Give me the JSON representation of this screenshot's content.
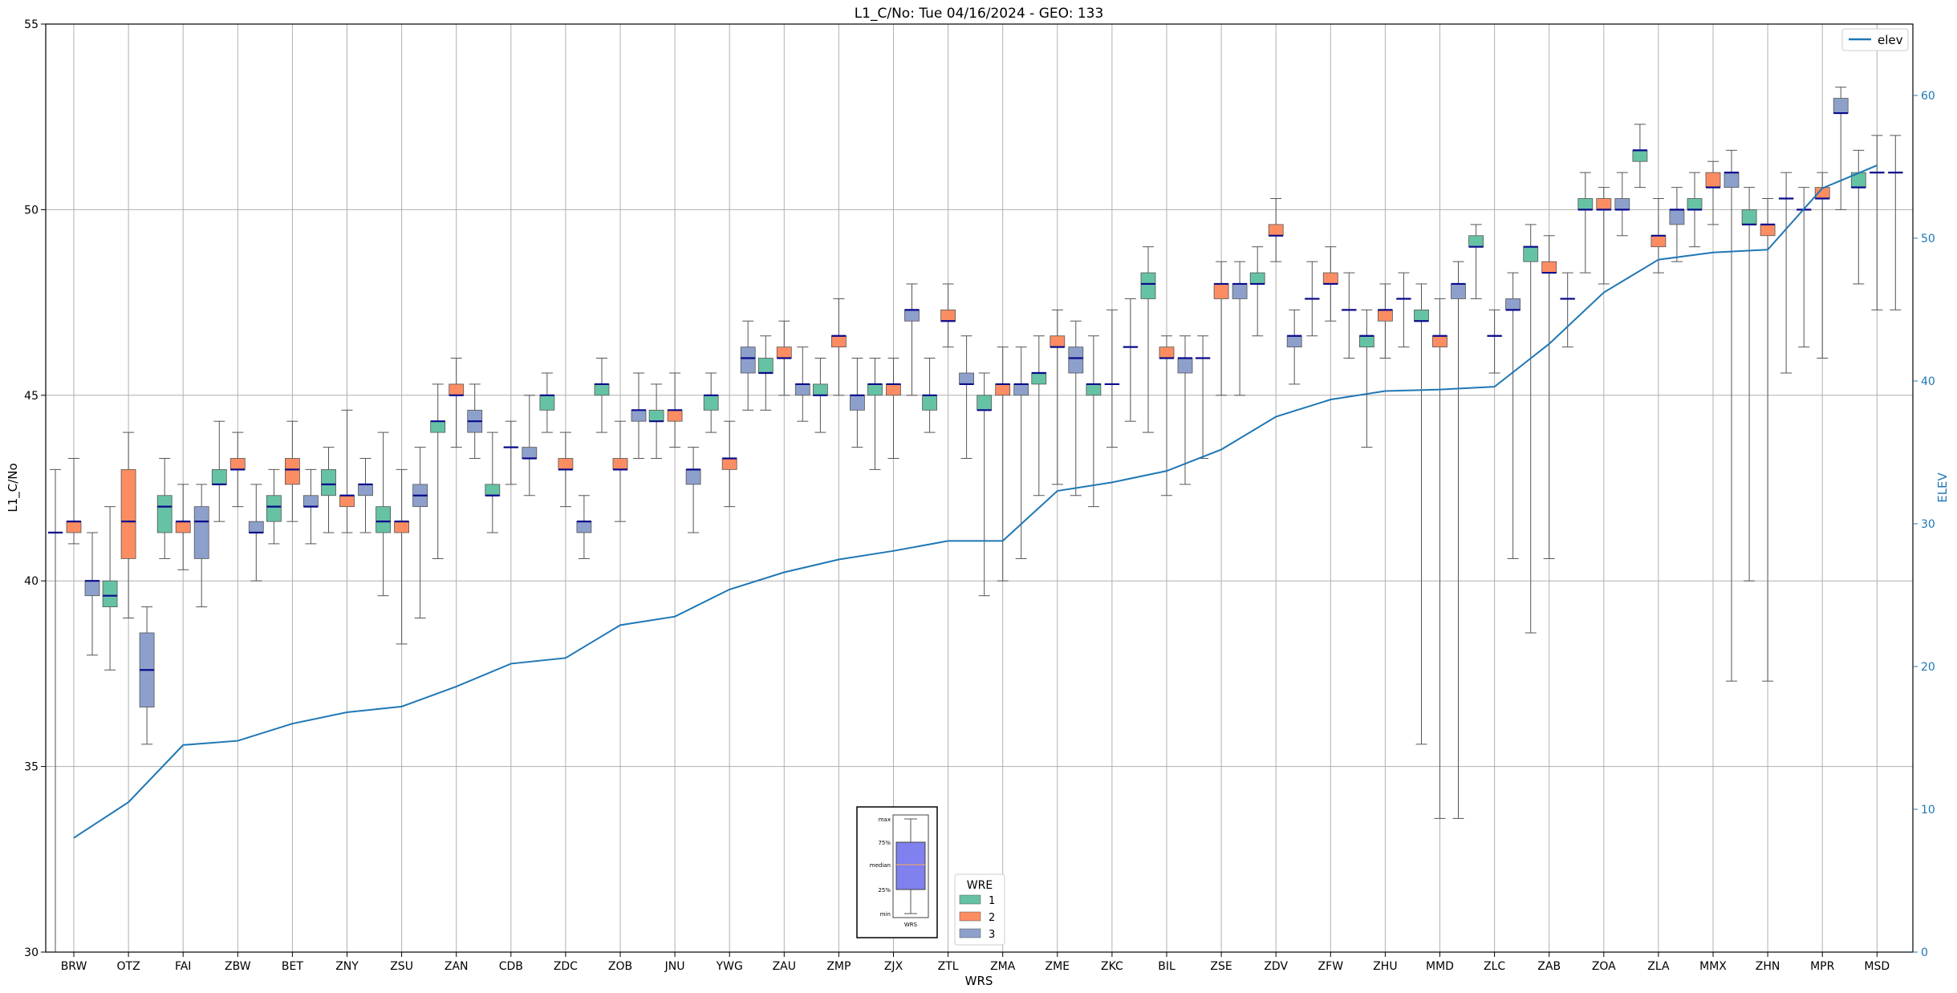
{
  "chart_data": {
    "type": "box",
    "title": "L1_C/No: Tue 04/16/2024 - GEO: 133",
    "xlabel": "WRS",
    "ylabel": "L1_C/No",
    "y2label": "ELEV",
    "ylim": [
      30,
      55
    ],
    "y2lim": [
      0,
      65
    ],
    "yticks": [
      30,
      35,
      40,
      45,
      50,
      55
    ],
    "y2ticks": [
      0,
      10,
      20,
      30,
      40,
      50,
      60
    ],
    "grid": true,
    "categories": [
      "BRW",
      "OTZ",
      "FAI",
      "ZBW",
      "BET",
      "ZNY",
      "ZSU",
      "ZAN",
      "CDB",
      "ZDC",
      "ZOB",
      "JNU",
      "YWG",
      "ZAU",
      "ZMP",
      "ZJX",
      "ZTL",
      "ZMA",
      "ZME",
      "ZKC",
      "BIL",
      "ZSE",
      "ZDV",
      "ZFW",
      "ZHU",
      "MMD",
      "ZLC",
      "ZAB",
      "ZOA",
      "ZLA",
      "MMX",
      "ZHN",
      "MPR",
      "MSD"
    ],
    "wre_colors": {
      "1": "#66c2a5",
      "2": "#fc8d62",
      "3": "#8da0cb"
    },
    "legend": {
      "title": "WRE",
      "entries": [
        "1",
        "2",
        "3"
      ],
      "placement": "bottom-center"
    },
    "line_legend": {
      "label": "elev",
      "placement": "top-right",
      "color": "#1f77b4"
    },
    "elev_series": {
      "name": "elev",
      "values": [
        8,
        10.5,
        14.5,
        14.8,
        16,
        16.8,
        17.2,
        18.6,
        20.2,
        20.6,
        22.9,
        23.5,
        25.4,
        26.6,
        27.5,
        28.1,
        28.8,
        28.8,
        32.3,
        32.9,
        33.7,
        35.2,
        37.5,
        38.7,
        39.3,
        39.4,
        39.6,
        42.6,
        46.2,
        48.5,
        49,
        49.2,
        53.5,
        55.1
      ]
    },
    "boxes": [
      {
        "wrs": "BRW",
        "wre": 1,
        "min": 30,
        "q1": 41.3,
        "median": 41.3,
        "q3": 41.3,
        "max": 43
      },
      {
        "wrs": "BRW",
        "wre": 2,
        "min": 41,
        "q1": 41.3,
        "median": 41.6,
        "q3": 41.6,
        "max": 43.3
      },
      {
        "wrs": "BRW",
        "wre": 3,
        "min": 38,
        "q1": 39.6,
        "median": 40,
        "q3": 40,
        "max": 41.3
      },
      {
        "wrs": "OTZ",
        "wre": 1,
        "min": 37.6,
        "q1": 39.3,
        "median": 39.6,
        "q3": 40,
        "max": 42
      },
      {
        "wrs": "OTZ",
        "wre": 2,
        "min": 39,
        "q1": 40.6,
        "median": 41.6,
        "q3": 43,
        "max": 44
      },
      {
        "wrs": "OTZ",
        "wre": 3,
        "min": 35.6,
        "q1": 36.6,
        "median": 37.6,
        "q3": 38.6,
        "max": 39.3
      },
      {
        "wrs": "FAI",
        "wre": 1,
        "min": 40.6,
        "q1": 41.3,
        "median": 42,
        "q3": 42.3,
        "max": 43.3
      },
      {
        "wrs": "FAI",
        "wre": 2,
        "min": 40.3,
        "q1": 41.3,
        "median": 41.6,
        "q3": 41.6,
        "max": 42.6
      },
      {
        "wrs": "FAI",
        "wre": 3,
        "min": 39.3,
        "q1": 40.6,
        "median": 41.6,
        "q3": 42,
        "max": 42.6
      },
      {
        "wrs": "ZBW",
        "wre": 1,
        "min": 41.6,
        "q1": 42.6,
        "median": 42.6,
        "q3": 43,
        "max": 44.3
      },
      {
        "wrs": "ZBW",
        "wre": 2,
        "min": 42,
        "q1": 43,
        "median": 43,
        "q3": 43.3,
        "max": 44
      },
      {
        "wrs": "ZBW",
        "wre": 3,
        "min": 40,
        "q1": 41.3,
        "median": 41.3,
        "q3": 41.6,
        "max": 42.6
      },
      {
        "wrs": "BET",
        "wre": 1,
        "min": 41,
        "q1": 41.6,
        "median": 42,
        "q3": 42.3,
        "max": 43
      },
      {
        "wrs": "BET",
        "wre": 2,
        "min": 41.6,
        "q1": 42.6,
        "median": 43,
        "q3": 43.3,
        "max": 44.3
      },
      {
        "wrs": "BET",
        "wre": 3,
        "min": 41,
        "q1": 42,
        "median": 42,
        "q3": 42.3,
        "max": 43
      },
      {
        "wrs": "ZNY",
        "wre": 1,
        "min": 41.3,
        "q1": 42.3,
        "median": 42.6,
        "q3": 43,
        "max": 43.6
      },
      {
        "wrs": "ZNY",
        "wre": 2,
        "min": 41.3,
        "q1": 42,
        "median": 42.3,
        "q3": 42.3,
        "max": 44.6
      },
      {
        "wrs": "ZNY",
        "wre": 3,
        "min": 41.3,
        "q1": 42.3,
        "median": 42.6,
        "q3": 42.6,
        "max": 43.3
      },
      {
        "wrs": "ZSU",
        "wre": 1,
        "min": 39.6,
        "q1": 41.3,
        "median": 41.6,
        "q3": 42,
        "max": 44
      },
      {
        "wrs": "ZSU",
        "wre": 2,
        "min": 38.3,
        "q1": 41.3,
        "median": 41.6,
        "q3": 41.6,
        "max": 43
      },
      {
        "wrs": "ZSU",
        "wre": 3,
        "min": 39,
        "q1": 42,
        "median": 42.3,
        "q3": 42.6,
        "max": 43.6
      },
      {
        "wrs": "ZAN",
        "wre": 1,
        "min": 40.6,
        "q1": 44,
        "median": 44.3,
        "q3": 44.3,
        "max": 45.3
      },
      {
        "wrs": "ZAN",
        "wre": 2,
        "min": 43.6,
        "q1": 45,
        "median": 45,
        "q3": 45.3,
        "max": 46
      },
      {
        "wrs": "ZAN",
        "wre": 3,
        "min": 43.3,
        "q1": 44,
        "median": 44.3,
        "q3": 44.6,
        "max": 45.3
      },
      {
        "wrs": "CDB",
        "wre": 1,
        "min": 41.3,
        "q1": 42.3,
        "median": 42.3,
        "q3": 42.6,
        "max": 44
      },
      {
        "wrs": "CDB",
        "wre": 2,
        "min": 42.6,
        "q1": 43.6,
        "median": 43.6,
        "q3": 43.6,
        "max": 44.3
      },
      {
        "wrs": "CDB",
        "wre": 3,
        "min": 42.3,
        "q1": 43.3,
        "median": 43.3,
        "q3": 43.6,
        "max": 45
      },
      {
        "wrs": "ZDC",
        "wre": 1,
        "min": 44,
        "q1": 44.6,
        "median": 45,
        "q3": 45,
        "max": 45.6
      },
      {
        "wrs": "ZDC",
        "wre": 2,
        "min": 42,
        "q1": 43,
        "median": 43,
        "q3": 43.3,
        "max": 44
      },
      {
        "wrs": "ZDC",
        "wre": 3,
        "min": 40.6,
        "q1": 41.3,
        "median": 41.6,
        "q3": 41.6,
        "max": 42.3
      },
      {
        "wrs": "ZOB",
        "wre": 1,
        "min": 44,
        "q1": 45,
        "median": 45.3,
        "q3": 45.3,
        "max": 46
      },
      {
        "wrs": "ZOB",
        "wre": 2,
        "min": 41.6,
        "q1": 43,
        "median": 43,
        "q3": 43.3,
        "max": 44.3
      },
      {
        "wrs": "ZOB",
        "wre": 3,
        "min": 43.3,
        "q1": 44.3,
        "median": 44.6,
        "q3": 44.6,
        "max": 45.6
      },
      {
        "wrs": "JNU",
        "wre": 1,
        "min": 43.3,
        "q1": 44.3,
        "median": 44.3,
        "q3": 44.6,
        "max": 45.3
      },
      {
        "wrs": "JNU",
        "wre": 2,
        "min": 43.6,
        "q1": 44.3,
        "median": 44.6,
        "q3": 44.6,
        "max": 45.6
      },
      {
        "wrs": "JNU",
        "wre": 3,
        "min": 41.3,
        "q1": 42.6,
        "median": 43,
        "q3": 43,
        "max": 43.6
      },
      {
        "wrs": "YWG",
        "wre": 1,
        "min": 44,
        "q1": 44.6,
        "median": 45,
        "q3": 45,
        "max": 45.6
      },
      {
        "wrs": "YWG",
        "wre": 2,
        "min": 42,
        "q1": 43,
        "median": 43.3,
        "q3": 43.3,
        "max": 44.3
      },
      {
        "wrs": "YWG",
        "wre": 3,
        "min": 44.6,
        "q1": 45.6,
        "median": 46,
        "q3": 46.3,
        "max": 47
      },
      {
        "wrs": "ZAU",
        "wre": 1,
        "min": 44.6,
        "q1": 45.6,
        "median": 45.6,
        "q3": 46,
        "max": 46.6
      },
      {
        "wrs": "ZAU",
        "wre": 2,
        "min": 45,
        "q1": 46,
        "median": 46,
        "q3": 46.3,
        "max": 47
      },
      {
        "wrs": "ZAU",
        "wre": 3,
        "min": 44.3,
        "q1": 45,
        "median": 45.3,
        "q3": 45.3,
        "max": 46.3
      },
      {
        "wrs": "ZMP",
        "wre": 1,
        "min": 44,
        "q1": 45,
        "median": 45,
        "q3": 45.3,
        "max": 46
      },
      {
        "wrs": "ZMP",
        "wre": 2,
        "min": 45,
        "q1": 46.3,
        "median": 46.6,
        "q3": 46.6,
        "max": 47.6
      },
      {
        "wrs": "ZMP",
        "wre": 3,
        "min": 43.6,
        "q1": 44.6,
        "median": 45,
        "q3": 45,
        "max": 46
      },
      {
        "wrs": "ZJX",
        "wre": 1,
        "min": 43,
        "q1": 45,
        "median": 45.3,
        "q3": 45.3,
        "max": 46
      },
      {
        "wrs": "ZJX",
        "wre": 2,
        "min": 43.3,
        "q1": 45,
        "median": 45.3,
        "q3": 45.3,
        "max": 46
      },
      {
        "wrs": "ZJX",
        "wre": 3,
        "min": 45,
        "q1": 47,
        "median": 47.3,
        "q3": 47.3,
        "max": 48
      },
      {
        "wrs": "ZTL",
        "wre": 1,
        "min": 44,
        "q1": 44.6,
        "median": 45,
        "q3": 45,
        "max": 46
      },
      {
        "wrs": "ZTL",
        "wre": 2,
        "min": 46.3,
        "q1": 47,
        "median": 47,
        "q3": 47.3,
        "max": 48
      },
      {
        "wrs": "ZTL",
        "wre": 3,
        "min": 43.3,
        "q1": 45.3,
        "median": 45.3,
        "q3": 45.6,
        "max": 46.6
      },
      {
        "wrs": "ZMA",
        "wre": 1,
        "min": 39.6,
        "q1": 44.6,
        "median": 44.6,
        "q3": 45,
        "max": 45.6
      },
      {
        "wrs": "ZMA",
        "wre": 2,
        "min": 40,
        "q1": 45,
        "median": 45.3,
        "q3": 45.3,
        "max": 46.3
      },
      {
        "wrs": "ZMA",
        "wre": 3,
        "min": 40.6,
        "q1": 45,
        "median": 45.3,
        "q3": 45.3,
        "max": 46.3
      },
      {
        "wrs": "ZME",
        "wre": 1,
        "min": 42.3,
        "q1": 45.3,
        "median": 45.6,
        "q3": 45.6,
        "max": 46.6
      },
      {
        "wrs": "ZME",
        "wre": 2,
        "min": 42.6,
        "q1": 46.3,
        "median": 46.3,
        "q3": 46.6,
        "max": 47.3
      },
      {
        "wrs": "ZME",
        "wre": 3,
        "min": 42.3,
        "q1": 45.6,
        "median": 46,
        "q3": 46.3,
        "max": 47
      },
      {
        "wrs": "ZKC",
        "wre": 1,
        "min": 42,
        "q1": 45,
        "median": 45.3,
        "q3": 45.3,
        "max": 46.6
      },
      {
        "wrs": "ZKC",
        "wre": 2,
        "min": 43.6,
        "q1": 45.3,
        "median": 45.3,
        "q3": 45.3,
        "max": 47.3
      },
      {
        "wrs": "ZKC",
        "wre": 3,
        "min": 44.3,
        "q1": 46.3,
        "median": 46.3,
        "q3": 46.3,
        "max": 47.6
      },
      {
        "wrs": "BIL",
        "wre": 1,
        "min": 44,
        "q1": 47.6,
        "median": 48,
        "q3": 48.3,
        "max": 49
      },
      {
        "wrs": "BIL",
        "wre": 2,
        "min": 42.3,
        "q1": 46,
        "median": 46,
        "q3": 46.3,
        "max": 46.6
      },
      {
        "wrs": "BIL",
        "wre": 3,
        "min": 42.6,
        "q1": 45.6,
        "median": 46,
        "q3": 46,
        "max": 46.6
      },
      {
        "wrs": "ZSE",
        "wre": 1,
        "min": 43.3,
        "q1": 46,
        "median": 46,
        "q3": 46,
        "max": 46.6
      },
      {
        "wrs": "ZSE",
        "wre": 2,
        "min": 45,
        "q1": 47.6,
        "median": 48,
        "q3": 48,
        "max": 48.6
      },
      {
        "wrs": "ZSE",
        "wre": 3,
        "min": 45,
        "q1": 47.6,
        "median": 48,
        "q3": 48,
        "max": 48.6
      },
      {
        "wrs": "ZDV",
        "wre": 1,
        "min": 46.6,
        "q1": 48,
        "median": 48,
        "q3": 48.3,
        "max": 49
      },
      {
        "wrs": "ZDV",
        "wre": 2,
        "min": 48.6,
        "q1": 49.3,
        "median": 49.3,
        "q3": 49.6,
        "max": 50.3
      },
      {
        "wrs": "ZDV",
        "wre": 3,
        "min": 45.3,
        "q1": 46.3,
        "median": 46.6,
        "q3": 46.6,
        "max": 47.3
      },
      {
        "wrs": "ZFW",
        "wre": 1,
        "min": 46.6,
        "q1": 47.6,
        "median": 47.6,
        "q3": 47.6,
        "max": 48.6
      },
      {
        "wrs": "ZFW",
        "wre": 2,
        "min": 47,
        "q1": 48,
        "median": 48,
        "q3": 48.3,
        "max": 49
      },
      {
        "wrs": "ZFW",
        "wre": 3,
        "min": 46,
        "q1": 47.3,
        "median": 47.3,
        "q3": 47.3,
        "max": 48.3
      },
      {
        "wrs": "ZHU",
        "wre": 1,
        "min": 43.6,
        "q1": 46.3,
        "median": 46.6,
        "q3": 46.6,
        "max": 47.3
      },
      {
        "wrs": "ZHU",
        "wre": 2,
        "min": 46,
        "q1": 47,
        "median": 47.3,
        "q3": 47.3,
        "max": 48
      },
      {
        "wrs": "ZHU",
        "wre": 3,
        "min": 46.3,
        "q1": 47.6,
        "median": 47.6,
        "q3": 47.6,
        "max": 48.3
      },
      {
        "wrs": "MMD",
        "wre": 1,
        "min": 35.6,
        "q1": 47,
        "median": 47,
        "q3": 47.3,
        "max": 48
      },
      {
        "wrs": "MMD",
        "wre": 2,
        "min": 33.6,
        "q1": 46.3,
        "median": 46.6,
        "q3": 46.6,
        "max": 47.6
      },
      {
        "wrs": "MMD",
        "wre": 3,
        "min": 33.6,
        "q1": 47.6,
        "median": 48,
        "q3": 48,
        "max": 48.6
      },
      {
        "wrs": "ZLC",
        "wre": 1,
        "min": 47.6,
        "q1": 49,
        "median": 49,
        "q3": 49.3,
        "max": 49.6
      },
      {
        "wrs": "ZLC",
        "wre": 2,
        "min": 45.6,
        "q1": 46.6,
        "median": 46.6,
        "q3": 46.6,
        "max": 47.3
      },
      {
        "wrs": "ZLC",
        "wre": 3,
        "min": 40.6,
        "q1": 47.3,
        "median": 47.3,
        "q3": 47.6,
        "max": 48.3
      },
      {
        "wrs": "ZAB",
        "wre": 1,
        "min": 38.6,
        "q1": 48.6,
        "median": 49,
        "q3": 49,
        "max": 49.6
      },
      {
        "wrs": "ZAB",
        "wre": 2,
        "min": 40.6,
        "q1": 48.3,
        "median": 48.3,
        "q3": 48.6,
        "max": 49.3
      },
      {
        "wrs": "ZAB",
        "wre": 3,
        "min": 46.3,
        "q1": 47.6,
        "median": 47.6,
        "q3": 47.6,
        "max": 48.3
      },
      {
        "wrs": "ZOA",
        "wre": 1,
        "min": 48.3,
        "q1": 50,
        "median": 50,
        "q3": 50.3,
        "max": 51
      },
      {
        "wrs": "ZOA",
        "wre": 2,
        "min": 48,
        "q1": 50,
        "median": 50,
        "q3": 50.3,
        "max": 50.6
      },
      {
        "wrs": "ZOA",
        "wre": 3,
        "min": 49.3,
        "q1": 50,
        "median": 50,
        "q3": 50.3,
        "max": 51
      },
      {
        "wrs": "ZLA",
        "wre": 1,
        "min": 50.6,
        "q1": 51.3,
        "median": 51.6,
        "q3": 51.6,
        "max": 52.3
      },
      {
        "wrs": "ZLA",
        "wre": 2,
        "min": 48.3,
        "q1": 49,
        "median": 49.3,
        "q3": 49.3,
        "max": 50.3
      },
      {
        "wrs": "ZLA",
        "wre": 3,
        "min": 48.6,
        "q1": 49.6,
        "median": 50,
        "q3": 50,
        "max": 50.6
      },
      {
        "wrs": "MMX",
        "wre": 1,
        "min": 49,
        "q1": 50,
        "median": 50,
        "q3": 50.3,
        "max": 51
      },
      {
        "wrs": "MMX",
        "wre": 2,
        "min": 49.6,
        "q1": 50.6,
        "median": 50.6,
        "q3": 51,
        "max": 51.3
      },
      {
        "wrs": "MMX",
        "wre": 3,
        "min": 37.3,
        "q1": 50.6,
        "median": 51,
        "q3": 51,
        "max": 51.6
      },
      {
        "wrs": "ZHN",
        "wre": 1,
        "min": 40,
        "q1": 49.6,
        "median": 49.6,
        "q3": 50,
        "max": 50.6
      },
      {
        "wrs": "ZHN",
        "wre": 2,
        "min": 37.3,
        "q1": 49.3,
        "median": 49.6,
        "q3": 49.6,
        "max": 50.3
      },
      {
        "wrs": "ZHN",
        "wre": 3,
        "min": 45.6,
        "q1": 50.3,
        "median": 50.3,
        "q3": 50.3,
        "max": 51
      },
      {
        "wrs": "MPR",
        "wre": 1,
        "min": 46.3,
        "q1": 50,
        "median": 50,
        "q3": 50,
        "max": 50.6
      },
      {
        "wrs": "MPR",
        "wre": 2,
        "min": 46,
        "q1": 50.3,
        "median": 50.3,
        "q3": 50.6,
        "max": 51
      },
      {
        "wrs": "MPR",
        "wre": 3,
        "min": 50,
        "q1": 52.6,
        "median": 52.6,
        "q3": 53,
        "max": 53.3
      },
      {
        "wrs": "MSD",
        "wre": 1,
        "min": 48,
        "q1": 50.6,
        "median": 50.6,
        "q3": 51,
        "max": 51.6
      },
      {
        "wrs": "MSD",
        "wre": 2,
        "min": 47.3,
        "q1": 51,
        "median": 51,
        "q3": 51,
        "max": 52
      },
      {
        "wrs": "MSD",
        "wre": 3,
        "min": 47.3,
        "q1": 51,
        "median": 51,
        "q3": 51,
        "max": 52
      }
    ],
    "inset_key": {
      "labels": [
        "max",
        "75%",
        "median",
        "25%",
        "min"
      ],
      "xlabel": "WRS",
      "box_color": "#8080ee"
    }
  }
}
